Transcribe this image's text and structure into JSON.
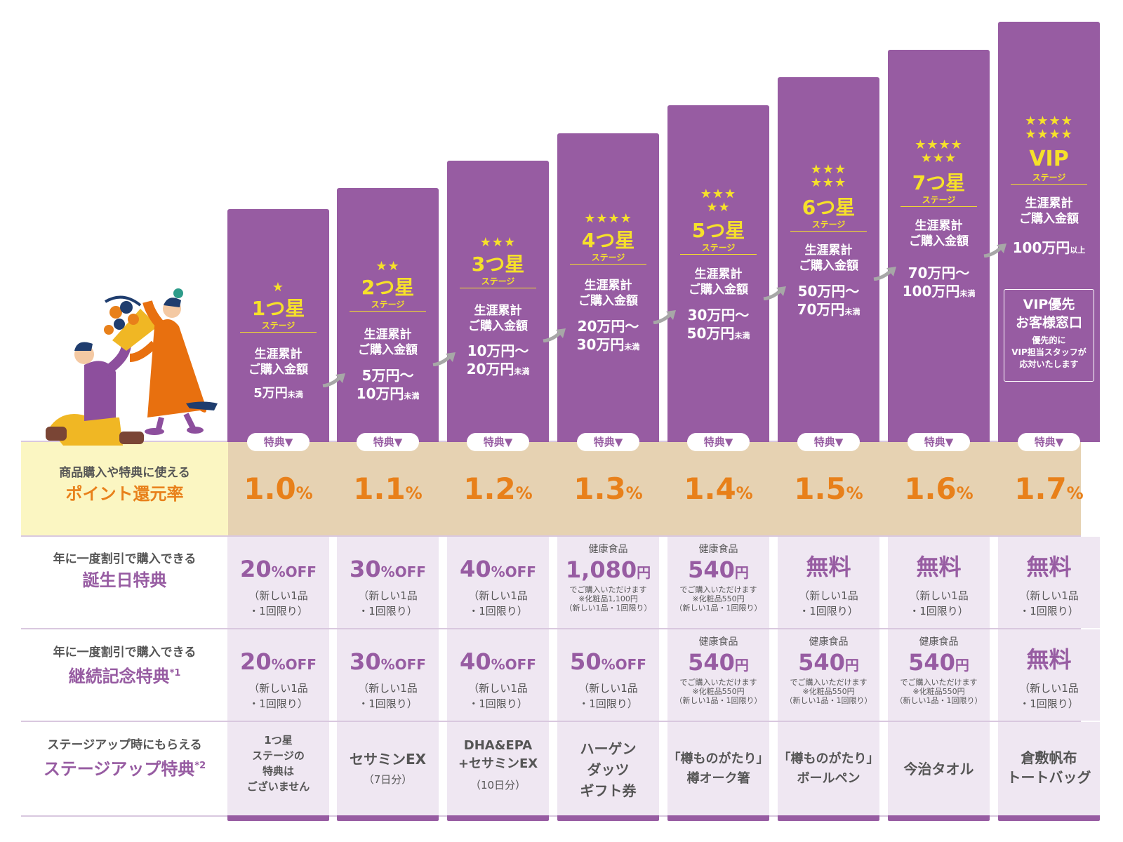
{
  "row_labels": {
    "point": {
      "top": "商品購入や特典に使える",
      "main": "ポイント還元率"
    },
    "birthday": {
      "top": "年に一度割引で購入できる",
      "main": "誕生日特典"
    },
    "anniversary": {
      "top": "年に一度割引で購入できる",
      "main": "継続記念特典",
      "mark": "*1"
    },
    "stageup": {
      "top": "ステージアップ時にもらえる",
      "main": "ステージアップ特典",
      "mark": "*2"
    }
  },
  "common": {
    "lifetime_label_1": "生涯累計",
    "lifetime_label_2": "ご購入金額",
    "stage_suffix": "ステージ",
    "benefit_button": "特典▼",
    "limit_1": "（新しい1品",
    "limit_2": "・1回限り）",
    "kenko": "健康食品",
    "can_buy": "でご購入いただけます",
    "cosme_limit": "（新しい1品・1回限り）"
  },
  "stages": [
    {
      "stars": "★",
      "name": "1つ星",
      "amount": "5万円",
      "amount_suffix": "未満",
      "rate": "1.0",
      "rate_unit": "%",
      "bday_big": "20",
      "bday_unit": "%OFF",
      "anniv_big": "20",
      "anniv_unit": "%OFF",
      "gift": [
        "1つ星",
        "ステージの",
        "特典は",
        "ございません"
      ]
    },
    {
      "stars": "★★",
      "name": "2つ星",
      "amount": "5万円～",
      "amount2": "10万円",
      "amount_suffix": "未満",
      "rate": "1.1",
      "rate_unit": "%",
      "bday_big": "30",
      "bday_unit": "%OFF",
      "anniv_big": "30",
      "anniv_unit": "%OFF",
      "gift_main": "セサミンEX",
      "gift_sub": "（7日分）"
    },
    {
      "stars": "★★★",
      "name": "3つ星",
      "amount": "10万円～",
      "amount2": "20万円",
      "amount_suffix": "未満",
      "rate": "1.2",
      "rate_unit": "%",
      "bday_big": "40",
      "bday_unit": "%OFF",
      "anniv_big": "40",
      "anniv_unit": "%OFF",
      "gift_main": "DHA&EPA",
      "gift_main2": "+セサミンEX",
      "gift_sub": "（10日分）"
    },
    {
      "stars": "★★★★",
      "name": "4つ星",
      "amount": "20万円～",
      "amount2": "30万円",
      "amount_suffix": "未満",
      "rate": "1.3",
      "rate_unit": "%",
      "bday_big": "1,080",
      "bday_unit": "円",
      "bday_cosme": "※化粧品1,100円",
      "anniv_big": "50",
      "anniv_unit": "%OFF",
      "gift": [
        "ハーゲン",
        "ダッツ",
        "ギフト券"
      ]
    },
    {
      "stars1": "★★★",
      "stars2": "★★",
      "name": "5つ星",
      "amount": "30万円～",
      "amount2": "50万円",
      "amount_suffix": "未満",
      "rate": "1.4",
      "rate_unit": "%",
      "bday_big": "540",
      "bday_unit": "円",
      "bday_cosme": "※化粧品550円",
      "anniv_big": "540",
      "anniv_unit": "円",
      "anniv_cosme": "※化粧品550円",
      "gift": [
        "「樽ものがたり」",
        "樽オーク箸"
      ]
    },
    {
      "stars1": "★★★",
      "stars2": "★★★",
      "name": "6つ星",
      "amount": "50万円～",
      "amount2": "70万円",
      "amount_suffix": "未満",
      "rate": "1.5",
      "rate_unit": "%",
      "bday_big": "無料",
      "anniv_big": "540",
      "anniv_unit": "円",
      "anniv_cosme": "※化粧品550円",
      "gift": [
        "「樽ものがたり」",
        "ボールペン"
      ]
    },
    {
      "stars1": "★★★★",
      "stars2": "★★★",
      "name": "7つ星",
      "amount": "70万円～",
      "amount2": "100万円",
      "amount_suffix": "未満",
      "rate": "1.6",
      "rate_unit": "%",
      "bday_big": "無料",
      "anniv_big": "540",
      "anniv_unit": "円",
      "anniv_cosme": "※化粧品550円",
      "gift_main": "今治タオル"
    },
    {
      "stars1": "★★★★",
      "stars2": "★★★★",
      "name": "VIP",
      "amount": "100万円",
      "amount_suffix": "以上",
      "rate": "1.7",
      "rate_unit": "%",
      "bday_big": "無料",
      "anniv_big": "無料",
      "vip_title1": "VIP優先",
      "vip_title2": "お客様窓口",
      "vip_desc1": "優先的に",
      "vip_desc2": "VIP担当スタッフが",
      "vip_desc3": "応対いたします",
      "gift": [
        "倉敷帆布",
        "トートバッグ"
      ]
    }
  ],
  "colors": {
    "purple": "#975ca2",
    "yellow": "#f6e12a",
    "orange": "#e8801a",
    "rate_band": "#e6d2b2",
    "rate_label_bg": "#fbf6c2",
    "cell_bg": "#efe7f2"
  }
}
